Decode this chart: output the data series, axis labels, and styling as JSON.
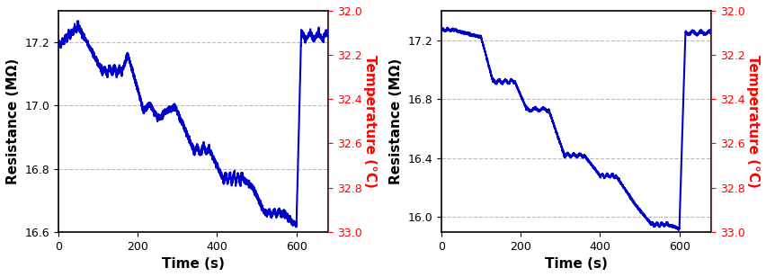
{
  "left_chart": {
    "xlim": [
      0,
      680
    ],
    "ylim_left": [
      16.6,
      17.3
    ],
    "ylim_right": [
      33.0,
      32.0
    ],
    "yticks_left": [
      16.6,
      16.8,
      17.0,
      17.2
    ],
    "yticks_right": [
      33.0,
      32.8,
      32.6,
      32.4,
      32.2,
      32.0
    ],
    "yticks_right_labels": [
      "33.0",
      "32.8",
      "32.6",
      "32.4",
      "32.2",
      "32.0"
    ],
    "xticks": [
      0,
      200,
      400,
      600
    ],
    "xlabel": "Time (s)",
    "ylabel_left": "Resistance (MΩ)",
    "ylabel_right": "Temperature (°C)",
    "line_color": "#0000cc",
    "line_width": 1.5
  },
  "right_chart": {
    "xlim": [
      0,
      680
    ],
    "ylim_left": [
      15.9,
      17.4
    ],
    "ylim_right": [
      33.0,
      32.0
    ],
    "yticks_left": [
      16.0,
      16.4,
      16.8,
      17.2
    ],
    "yticks_right": [
      33.0,
      32.8,
      32.6,
      32.4,
      32.2,
      32.0
    ],
    "yticks_right_labels": [
      "33.0",
      "32.8",
      "32.6",
      "32.4",
      "32.2",
      "32.0"
    ],
    "xticks": [
      0,
      200,
      400,
      600
    ],
    "xlabel": "Time (s)",
    "ylabel_left": "Resistance (MΩ)",
    "ylabel_right": "Temperature (°C)",
    "line_color": "#0000cc",
    "line_width": 1.5
  },
  "background_color": "#ffffff",
  "grid_color": "#aaaaaa",
  "grid_linestyle": "--",
  "grid_alpha": 0.8,
  "tick_labelsize": 9,
  "axis_labelsize": 11,
  "ylabel_fontsize": 11,
  "right_ylabel_color": "red"
}
